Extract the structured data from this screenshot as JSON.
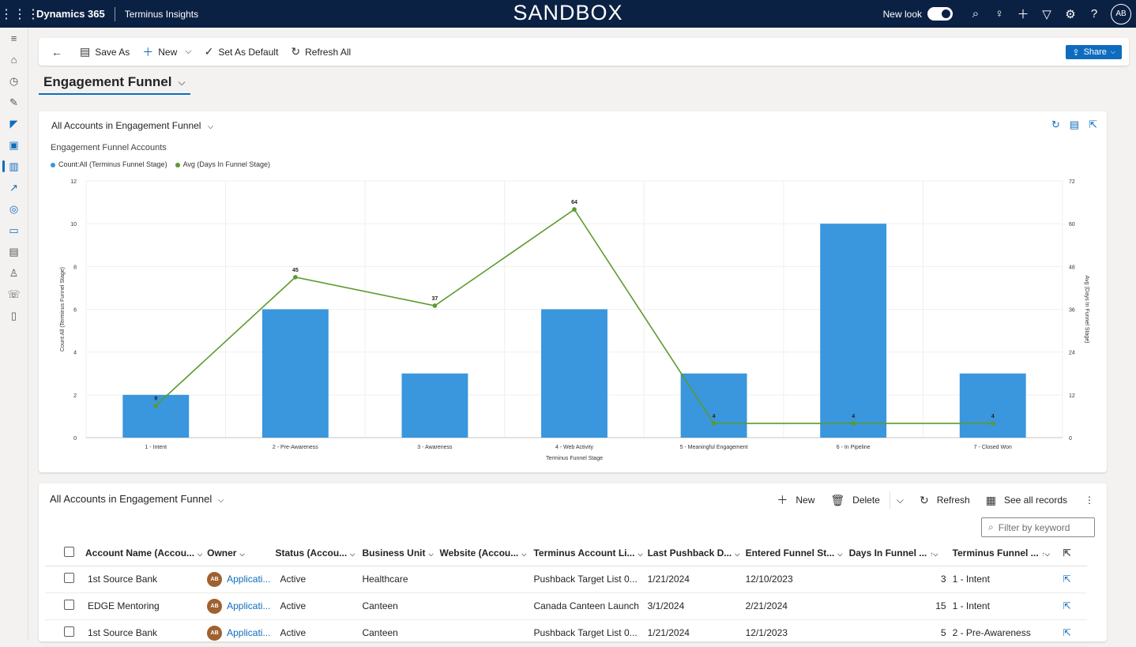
{
  "topbar": {
    "brand": "Dynamics 365",
    "app": "Terminus Insights",
    "env": "SANDBOX",
    "new_look": "New look",
    "avatar": "AB"
  },
  "commands": {
    "save_as": "Save As",
    "new": "New",
    "set_default": "Set As Default",
    "refresh_all": "Refresh All",
    "share": "Share"
  },
  "dashboard": {
    "title": "Engagement Funnel"
  },
  "chart_card": {
    "view_title": "All Accounts in Engagement Funnel",
    "chart_title": "Engagement Funnel Accounts"
  },
  "chart_data": {
    "type": "bar",
    "title": "Engagement Funnel Accounts",
    "xlabel": "Terminus Funnel Stage",
    "ylabel": "Count:All (Terminus Funnel Stage)",
    "y2label": "Avg (Days In Funnel Stage)",
    "categories": [
      "1 - Intent",
      "2 - Pre-Awareness",
      "3 - Awareness",
      "4 - Web Activity",
      "5 - Meaningful Engagement",
      "6 - In Pipeline",
      "7 - Closed Won"
    ],
    "series": [
      {
        "name": "Count:All (Terminus Funnel Stage)",
        "type": "bar",
        "axis": "left",
        "color": "#3a96dd",
        "values": [
          2,
          6,
          3,
          6,
          3,
          10,
          3
        ]
      },
      {
        "name": "Avg (Days In Funnel Stage)",
        "type": "line",
        "axis": "right",
        "color": "#5b9a2e",
        "values": [
          9,
          45,
          37,
          64,
          4,
          4,
          4
        ],
        "labels": [
          "9",
          "45",
          "37",
          "64",
          "4",
          "4",
          "4"
        ]
      }
    ],
    "ylim": [
      0,
      12
    ],
    "yticks": [
      "0",
      "2",
      "4",
      "6",
      "8",
      "10",
      "12"
    ],
    "y2lim": [
      0,
      72
    ],
    "y2ticks": [
      "0",
      "12",
      "24",
      "36",
      "48",
      "60",
      "72"
    ],
    "legend_position": "top-left",
    "grid": true
  },
  "grid": {
    "title": "All Accounts in Engagement Funnel",
    "commands": {
      "new": "New",
      "delete": "Delete",
      "refresh": "Refresh",
      "see_all": "See all records"
    },
    "filter_placeholder": "Filter by keyword",
    "columns": [
      "Account Name (Accou...",
      "Owner",
      "Status (Accou...",
      "Business Unit",
      "Website (Accou...",
      "Terminus Account Li...",
      "Last Pushback D...",
      "Entered Funnel St...",
      "Days In Funnel ...",
      "Terminus Funnel ..."
    ],
    "rows": [
      {
        "account": "1st Source Bank",
        "owner_initials": "AB",
        "owner": "Applicati...",
        "status": "Active",
        "bu": "Healthcare",
        "website": "",
        "list": "Pushback Target List 0...",
        "pushback": "1/21/2024",
        "entered": "12/10/2023",
        "days": "3",
        "stage": "1 - Intent"
      },
      {
        "account": "EDGE Mentoring",
        "owner_initials": "AB",
        "owner": "Applicati...",
        "status": "Active",
        "bu": "Canteen",
        "website": "",
        "list": "Canada Canteen Launch",
        "pushback": "3/1/2024",
        "entered": "2/21/2024",
        "days": "15",
        "stage": "1 - Intent"
      },
      {
        "account": "1st Source Bank",
        "owner_initials": "AB",
        "owner": "Applicati...",
        "status": "Active",
        "bu": "Canteen",
        "website": "",
        "list": "Pushback Target List 0...",
        "pushback": "1/21/2024",
        "entered": "12/1/2023",
        "days": "5",
        "stage": "2 - Pre-Awareness"
      }
    ]
  },
  "icons": {
    "waffle": "waffle-icon",
    "search": "search-icon",
    "lightbulb": "lightbulb-icon",
    "plus": "plus-icon",
    "filter": "filter-icon",
    "settings": "gear-icon",
    "help": "help-icon"
  }
}
